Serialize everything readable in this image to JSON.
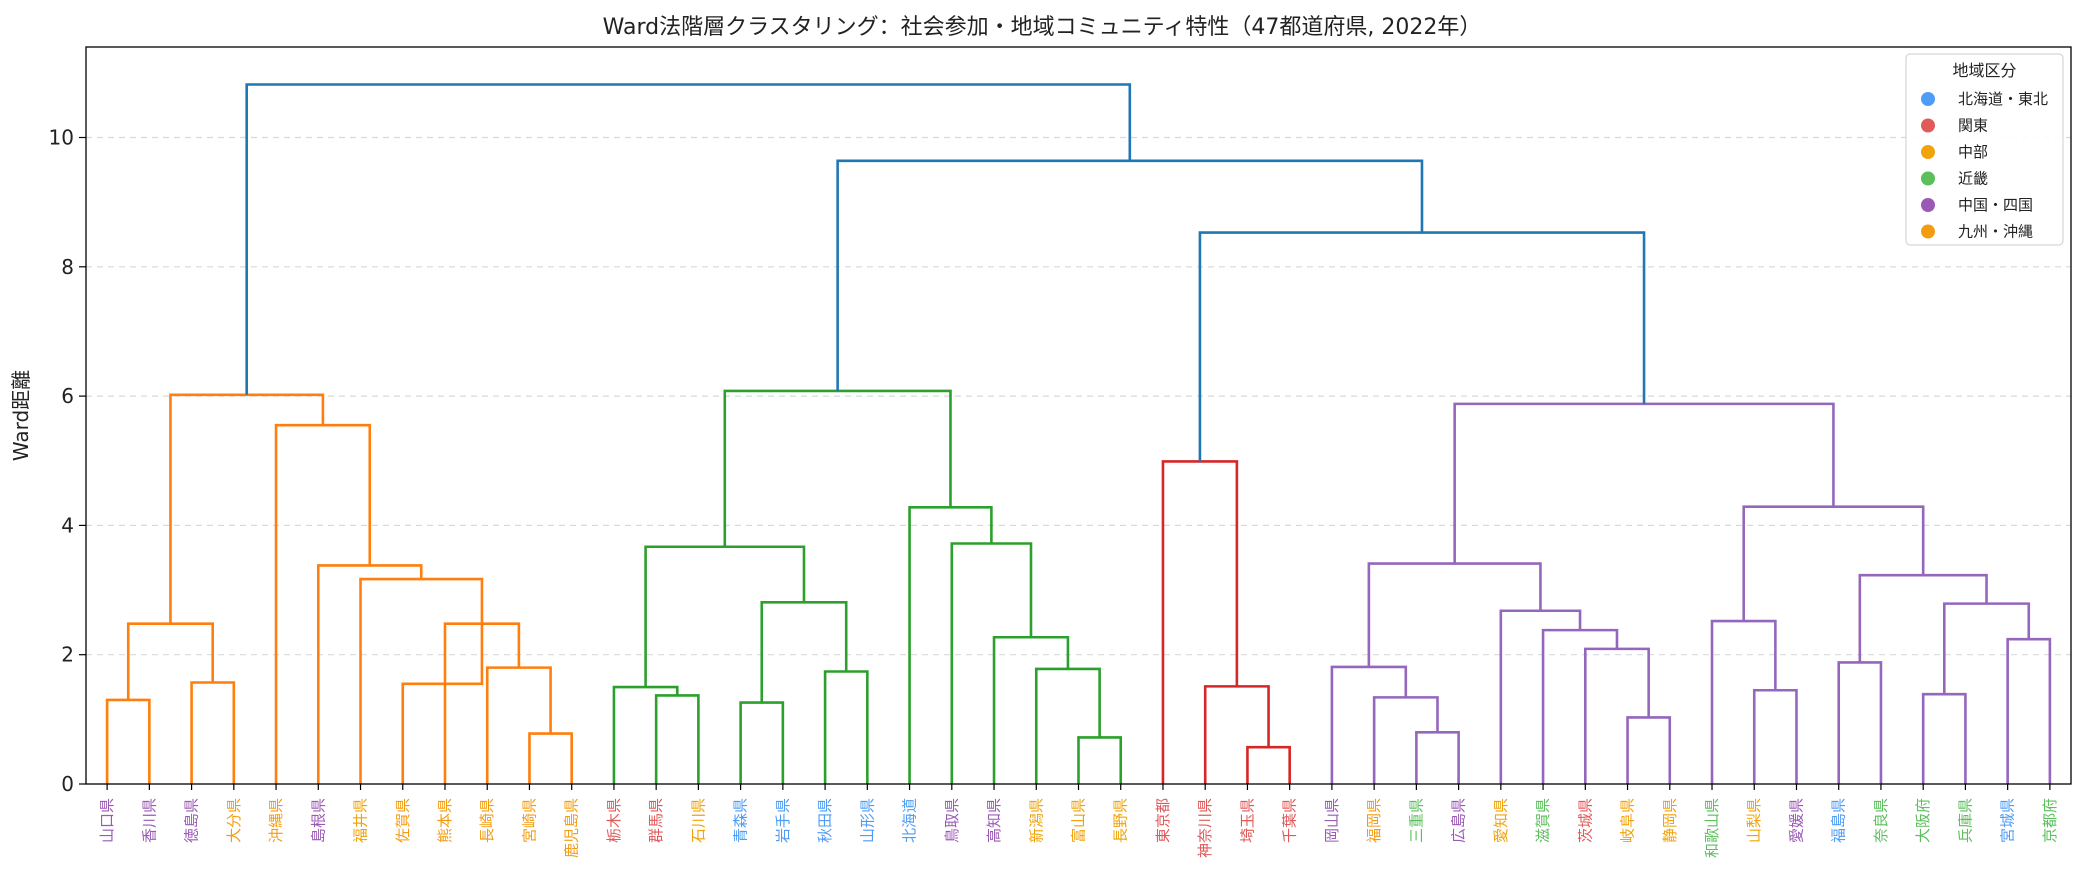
{
  "chart_data": {
    "type": "dendrogram",
    "title": "Ward法階層クラスタリング：社会参加・地域コミュニティ特性（47都道府県, 2022年）",
    "xlabel": "",
    "ylabel": "Ward距離",
    "ylim": [
      0,
      11.4
    ],
    "yticks": [
      0,
      2,
      4,
      6,
      8,
      10
    ],
    "grid": "horizontal-dashed",
    "leaves": [
      {
        "label": "山口県",
        "region": "中国・四国"
      },
      {
        "label": "香川県",
        "region": "中国・四国"
      },
      {
        "label": "徳島県",
        "region": "中国・四国"
      },
      {
        "label": "大分県",
        "region": "九州・沖縄"
      },
      {
        "label": "沖縄県",
        "region": "九州・沖縄"
      },
      {
        "label": "島根県",
        "region": "中国・四国"
      },
      {
        "label": "福井県",
        "region": "中部"
      },
      {
        "label": "佐賀県",
        "region": "九州・沖縄"
      },
      {
        "label": "熊本県",
        "region": "九州・沖縄"
      },
      {
        "label": "長崎県",
        "region": "九州・沖縄"
      },
      {
        "label": "宮崎県",
        "region": "九州・沖縄"
      },
      {
        "label": "鹿児島県",
        "region": "九州・沖縄"
      },
      {
        "label": "栃木県",
        "region": "関東"
      },
      {
        "label": "群馬県",
        "region": "関東"
      },
      {
        "label": "石川県",
        "region": "中部"
      },
      {
        "label": "青森県",
        "region": "北海道・東北"
      },
      {
        "label": "岩手県",
        "region": "北海道・東北"
      },
      {
        "label": "秋田県",
        "region": "北海道・東北"
      },
      {
        "label": "山形県",
        "region": "北海道・東北"
      },
      {
        "label": "北海道",
        "region": "北海道・東北"
      },
      {
        "label": "鳥取県",
        "region": "中国・四国"
      },
      {
        "label": "高知県",
        "region": "中国・四国"
      },
      {
        "label": "新潟県",
        "region": "中部"
      },
      {
        "label": "富山県",
        "region": "中部"
      },
      {
        "label": "長野県",
        "region": "中部"
      },
      {
        "label": "東京都",
        "region": "関東"
      },
      {
        "label": "神奈川県",
        "region": "関東"
      },
      {
        "label": "埼玉県",
        "region": "関東"
      },
      {
        "label": "千葉県",
        "region": "関東"
      },
      {
        "label": "岡山県",
        "region": "中国・四国"
      },
      {
        "label": "福岡県",
        "region": "九州・沖縄"
      },
      {
        "label": "三重県",
        "region": "近畿"
      },
      {
        "label": "広島県",
        "region": "中国・四国"
      },
      {
        "label": "愛知県",
        "region": "中部"
      },
      {
        "label": "滋賀県",
        "region": "近畿"
      },
      {
        "label": "茨城県",
        "region": "関東"
      },
      {
        "label": "岐阜県",
        "region": "中部"
      },
      {
        "label": "静岡県",
        "region": "中部"
      },
      {
        "label": "和歌山県",
        "region": "近畿"
      },
      {
        "label": "山梨県",
        "region": "中部"
      },
      {
        "label": "愛媛県",
        "region": "中国・四国"
      },
      {
        "label": "福島県",
        "region": "北海道・東北"
      },
      {
        "label": "奈良県",
        "region": "近畿"
      },
      {
        "label": "大阪府",
        "region": "近畿"
      },
      {
        "label": "兵庫県",
        "region": "近畿"
      },
      {
        "label": "宮城県",
        "region": "北海道・東北"
      },
      {
        "label": "京都府",
        "region": "近畿"
      }
    ],
    "merges": [
      {
        "left": 0,
        "right": 1,
        "height": 1.3,
        "cluster": "orange"
      },
      {
        "left": 2,
        "right": 3,
        "height": 1.57,
        "cluster": "orange"
      },
      {
        "left": 47,
        "right": 48,
        "height": 2.48,
        "cluster": "orange"
      },
      {
        "left": 10,
        "right": 11,
        "height": 0.78,
        "cluster": "orange"
      },
      {
        "left": 9,
        "right": 50,
        "height": 1.8,
        "cluster": "orange"
      },
      {
        "left": 8,
        "right": 51,
        "height": 2.48,
        "cluster": "orange"
      },
      {
        "left": 7,
        "right": 52,
        "height": 1.55,
        "cluster": "orange"
      },
      {
        "left": 6,
        "right": 52,
        "height": 3.17,
        "cluster": "orange"
      },
      {
        "left": 5,
        "right": 54,
        "height": 3.38,
        "cluster": "orange"
      },
      {
        "left": 4,
        "right": 55,
        "height": 5.55,
        "cluster": "orange"
      },
      {
        "left": 49,
        "right": 56,
        "height": 6.02,
        "cluster": "orange"
      },
      {
        "left": 13,
        "right": 14,
        "height": 1.37,
        "cluster": "green"
      },
      {
        "left": 12,
        "right": 58,
        "height": 1.5,
        "cluster": "green"
      },
      {
        "left": 15,
        "right": 16,
        "height": 1.26,
        "cluster": "green"
      },
      {
        "left": 17,
        "right": 18,
        "height": 1.74,
        "cluster": "green"
      },
      {
        "left": 60,
        "right": 61,
        "height": 2.81,
        "cluster": "green"
      },
      {
        "left": 59,
        "right": 62,
        "height": 3.67,
        "cluster": "green"
      },
      {
        "left": 23,
        "right": 24,
        "height": 0.72,
        "cluster": "green"
      },
      {
        "left": 22,
        "right": 64,
        "height": 1.78,
        "cluster": "green"
      },
      {
        "left": 21,
        "right": 65,
        "height": 2.27,
        "cluster": "green"
      },
      {
        "left": 20,
        "right": 66,
        "height": 3.72,
        "cluster": "green"
      },
      {
        "left": 19,
        "right": 67,
        "height": 4.28,
        "cluster": "green"
      },
      {
        "left": 63,
        "right": 68,
        "height": 6.08,
        "cluster": "green"
      },
      {
        "left": 27,
        "right": 28,
        "height": 0.57,
        "cluster": "red"
      },
      {
        "left": 26,
        "right": 70,
        "height": 1.51,
        "cluster": "red"
      },
      {
        "left": 25,
        "right": 71,
        "height": 4.99,
        "cluster": "red"
      },
      {
        "left": 31,
        "right": 32,
        "height": 0.8,
        "cluster": "purple"
      },
      {
        "left": 30,
        "right": 73,
        "height": 1.34,
        "cluster": "purple"
      },
      {
        "left": 29,
        "right": 74,
        "height": 1.81,
        "cluster": "purple"
      },
      {
        "left": 36,
        "right": 37,
        "height": 1.03,
        "cluster": "purple"
      },
      {
        "left": 35,
        "right": 76,
        "height": 2.09,
        "cluster": "purple"
      },
      {
        "left": 34,
        "right": 77,
        "height": 2.38,
        "cluster": "purple"
      },
      {
        "left": 33,
        "right": 78,
        "height": 2.68,
        "cluster": "purple"
      },
      {
        "left": 75,
        "right": 79,
        "height": 3.41,
        "cluster": "purple"
      },
      {
        "left": 39,
        "right": 40,
        "height": 1.45,
        "cluster": "purple"
      },
      {
        "left": 38,
        "right": 81,
        "height": 2.52,
        "cluster": "purple"
      },
      {
        "left": 41,
        "right": 42,
        "height": 1.88,
        "cluster": "purple"
      },
      {
        "left": 43,
        "right": 44,
        "height": 1.39,
        "cluster": "purple"
      },
      {
        "left": 45,
        "right": 46,
        "height": 2.24,
        "cluster": "purple"
      },
      {
        "left": 84,
        "right": 85,
        "height": 2.79,
        "cluster": "purple"
      },
      {
        "left": 83,
        "right": 86,
        "height": 3.23,
        "cluster": "purple"
      },
      {
        "left": 82,
        "right": 87,
        "height": 4.29,
        "cluster": "purple"
      },
      {
        "left": 80,
        "right": 88,
        "height": 5.88,
        "cluster": "purple"
      },
      {
        "left": 72,
        "right": 89,
        "height": 8.53,
        "cluster": "above"
      },
      {
        "left": 69,
        "right": 90,
        "height": 9.64,
        "cluster": "above"
      },
      {
        "left": 57,
        "right": 91,
        "height": 10.82,
        "cluster": "above"
      }
    ],
    "cluster_colors": {
      "orange": "#ff7f0e",
      "green": "#2ca02c",
      "red": "#d62728",
      "purple": "#9467bd",
      "above": "#1f77b4"
    },
    "legend": {
      "title": "地域区分",
      "placement": "top-right",
      "items": [
        {
          "label": "北海道・東北",
          "color": "#4e9cf5"
        },
        {
          "label": "関東",
          "color": "#e05a5a"
        },
        {
          "label": "中部",
          "color": "#f0a30a"
        },
        {
          "label": "近畿",
          "color": "#5cbf5c"
        },
        {
          "label": "中国・四国",
          "color": "#9b59b6"
        },
        {
          "label": "九州・沖縄",
          "color": "#f39c12"
        }
      ]
    }
  }
}
